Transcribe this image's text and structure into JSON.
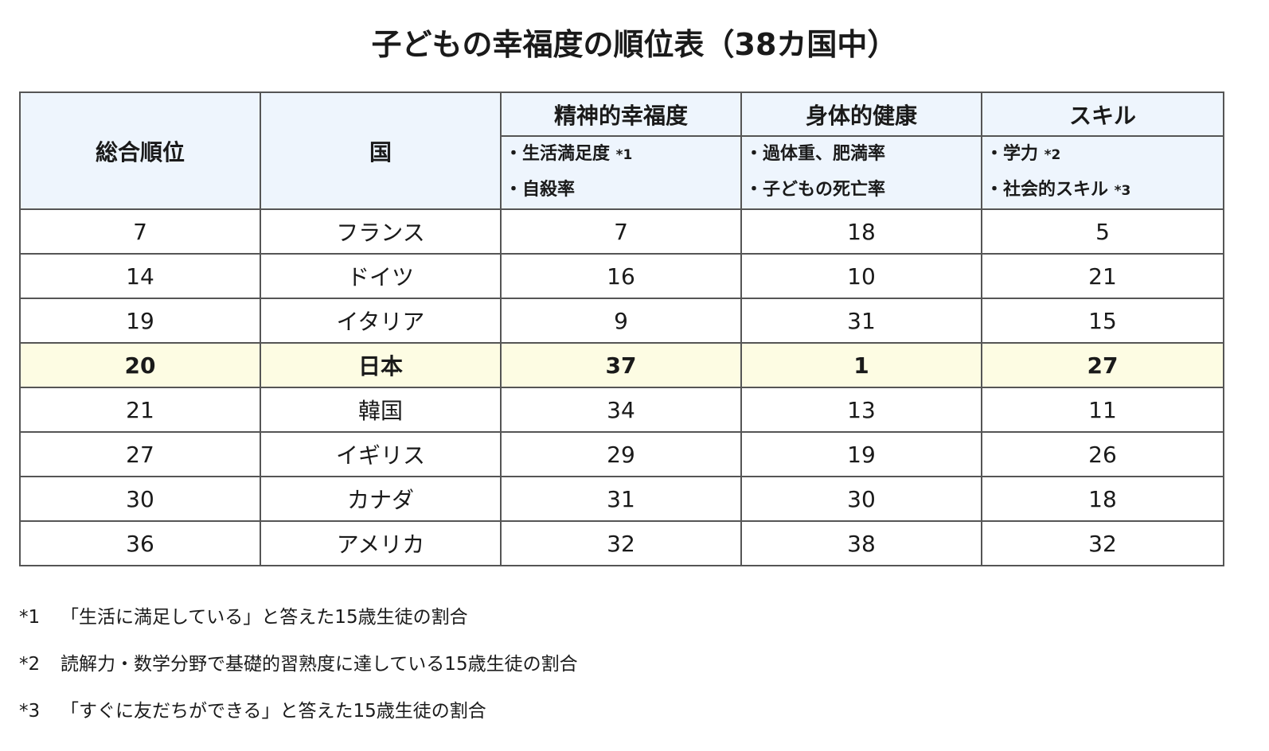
{
  "title": "子どもの幸福度の順位表（38カ国中）",
  "table": {
    "headers": {
      "rank": "総合順位",
      "country": "国",
      "mental": "精神的幸福度",
      "physical": "身体的健康",
      "skills": "スキル"
    },
    "subheaders": {
      "mental": [
        {
          "text": "・生活満足度 ",
          "note": "*1"
        },
        {
          "text": "・自殺率",
          "note": ""
        }
      ],
      "physical": [
        {
          "text": "・過体重、肥満率",
          "note": ""
        },
        {
          "text": "・子どもの死亡率",
          "note": ""
        }
      ],
      "skills": [
        {
          "text": "・学力 ",
          "note": "*2"
        },
        {
          "text": "・社会的スキル ",
          "note": "*3"
        }
      ]
    },
    "rows": [
      {
        "rank": "7",
        "country": "フランス",
        "mental": "7",
        "physical": "18",
        "skills": "5",
        "highlight": false
      },
      {
        "rank": "14",
        "country": "ドイツ",
        "mental": "16",
        "physical": "10",
        "skills": "21",
        "highlight": false
      },
      {
        "rank": "19",
        "country": "イタリア",
        "mental": "9",
        "physical": "31",
        "skills": "15",
        "highlight": false
      },
      {
        "rank": "20",
        "country": "日本",
        "mental": "37",
        "physical": "1",
        "skills": "27",
        "highlight": true
      },
      {
        "rank": "21",
        "country": "韓国",
        "mental": "34",
        "physical": "13",
        "skills": "11",
        "highlight": false
      },
      {
        "rank": "27",
        "country": "イギリス",
        "mental": "29",
        "physical": "19",
        "skills": "26",
        "highlight": false
      },
      {
        "rank": "30",
        "country": "カナダ",
        "mental": "31",
        "physical": "30",
        "skills": "18",
        "highlight": false
      },
      {
        "rank": "36",
        "country": "アメリカ",
        "mental": "32",
        "physical": "38",
        "skills": "32",
        "highlight": false
      }
    ]
  },
  "footnotes": [
    {
      "mark": "*1",
      "text": "「生活に満足している」と答えた15歳生徒の割合"
    },
    {
      "mark": "*2",
      "text": "読解力・数学分野で基礎的習熟度に達している15歳生徒の割合"
    },
    {
      "mark": "*3",
      "text": "「すぐに友だちができる」と答えた15歳生徒の割合"
    }
  ],
  "colors": {
    "header_background": "#eef5fd",
    "highlight_row": "#fdfce3",
    "border": "#555555"
  }
}
